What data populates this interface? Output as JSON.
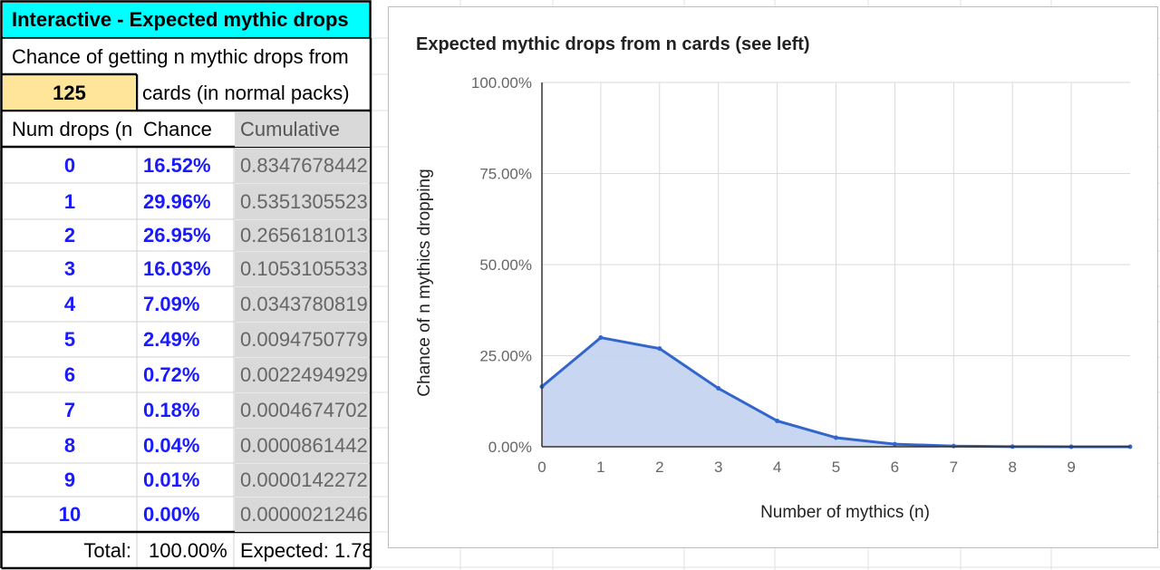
{
  "sheet": {
    "title": "Interactive - Expected mythic drops",
    "line1": "Chance of getting n mythic drops from",
    "card_count": "125",
    "line2": "cards (in normal packs)",
    "headers": {
      "drops": "Num drops (n",
      "chance": "Chance",
      "cumulative": "Cumulative"
    },
    "rows": [
      {
        "n": "0",
        "chance": "16.52%",
        "cumulative": "0.8347678442"
      },
      {
        "n": "1",
        "chance": "29.96%",
        "cumulative": "0.5351305523"
      },
      {
        "n": "2",
        "chance": "26.95%",
        "cumulative": "0.2656181013"
      },
      {
        "n": "3",
        "chance": "16.03%",
        "cumulative": "0.1053105533"
      },
      {
        "n": "4",
        "chance": "7.09%",
        "cumulative": "0.0343780819"
      },
      {
        "n": "5",
        "chance": "2.49%",
        "cumulative": "0.0094750779"
      },
      {
        "n": "6",
        "chance": "0.72%",
        "cumulative": "0.0022494929"
      },
      {
        "n": "7",
        "chance": "0.18%",
        "cumulative": "0.0004674702"
      },
      {
        "n": "8",
        "chance": "0.04%",
        "cumulative": "0.0000861442"
      },
      {
        "n": "9",
        "chance": "0.01%",
        "cumulative": "0.0000142272"
      },
      {
        "n": "10",
        "chance": "0.00%",
        "cumulative": "0.0000021246"
      }
    ],
    "total_label": "Total:",
    "total_value": "100.00%",
    "expected": "Expected: 1.78"
  },
  "colors": {
    "title_bg": "#00ffff",
    "input_bg": "#ffe599",
    "series": "#3366cc",
    "area": "#c6d4f0",
    "cum_bg": "#d9d9d9"
  },
  "chart_data": {
    "type": "area",
    "title": "Expected mythic drops from n cards  (see left)",
    "xlabel": "Number of mythics (n)",
    "ylabel": "Chance of n mythics dropping",
    "x": [
      0,
      1,
      2,
      3,
      4,
      5,
      6,
      7,
      8,
      9,
      10
    ],
    "x_tick_labels": [
      "0",
      "1",
      "2",
      "3",
      "4",
      "5",
      "6",
      "7",
      "8",
      "9"
    ],
    "y_tick_labels": [
      "100.00%",
      "75.00%",
      "50.00%",
      "25.00%",
      "0.00%"
    ],
    "ylim": [
      0,
      1
    ],
    "xlim": [
      0,
      10
    ],
    "grid": true,
    "series": [
      {
        "values": [
          0.1652,
          0.2996,
          0.2695,
          0.1603,
          0.0709,
          0.0249,
          0.0072,
          0.0018,
          0.0004,
          0.0001,
          0.0
        ]
      }
    ]
  }
}
